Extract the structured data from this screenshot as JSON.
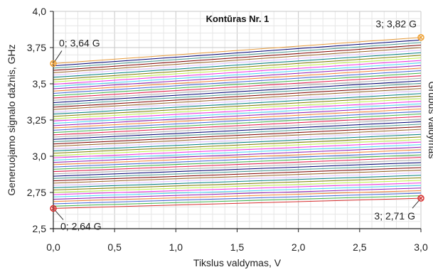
{
  "chart_data": {
    "type": "line",
    "title": "Kontūras Nr. 1",
    "xlabel": "Tikslus valdymas, V",
    "ylabel": "Generuojamo signalo dažnis, GHz",
    "right_label": "Grubus valdymas",
    "xlim": [
      0,
      3
    ],
    "ylim": [
      2.5,
      4.0
    ],
    "x_ticks": [
      {
        "value": 0.0,
        "label": "0,0"
      },
      {
        "value": 0.5,
        "label": "0,5"
      },
      {
        "value": 1.0,
        "label": "1,0"
      },
      {
        "value": 1.5,
        "label": "1,5"
      },
      {
        "value": 2.0,
        "label": "2,0"
      },
      {
        "value": 2.5,
        "label": "2,5"
      },
      {
        "value": 3.0,
        "label": "3,0"
      }
    ],
    "y_ticks": [
      {
        "value": 2.5,
        "label": "2,5"
      },
      {
        "value": 2.75,
        "label": "2,75"
      },
      {
        "value": 3.0,
        "label": "3,0"
      },
      {
        "value": 3.25,
        "label": "3,25"
      },
      {
        "value": 3.5,
        "label": "3,5"
      },
      {
        "value": 3.75,
        "label": "3,75"
      },
      {
        "value": 4.0,
        "label": "4,0"
      }
    ],
    "grid": true,
    "series_count": 64,
    "bottom_line": {
      "x": [
        0,
        3
      ],
      "y": [
        2.64,
        2.71
      ]
    },
    "top_line": {
      "x": [
        0,
        3
      ],
      "y": [
        3.64,
        3.82
      ]
    },
    "palette": [
      "#e6194b",
      "#3cb44b",
      "#4363d8",
      "#f58231",
      "#911eb4",
      "#42d4f4",
      "#f032e6",
      "#bfef45",
      "#808000",
      "#008080",
      "#dcbeff",
      "#9a6324",
      "#800000",
      "#469990",
      "#000075",
      "#a9a9a9"
    ],
    "annotations": [
      {
        "label": "0; 3,64 G",
        "x": 0,
        "y": 3.64,
        "marker_color": "#f0a030"
      },
      {
        "label": "3; 3,82 G",
        "x": 3,
        "y": 3.82,
        "marker_color": "#f0a030"
      },
      {
        "label": "0; 2,64 G",
        "x": 0,
        "y": 2.64,
        "marker_color": "#d83030"
      },
      {
        "label": "3; 2,71 G",
        "x": 3,
        "y": 2.71,
        "marker_color": "#d83030"
      }
    ]
  }
}
